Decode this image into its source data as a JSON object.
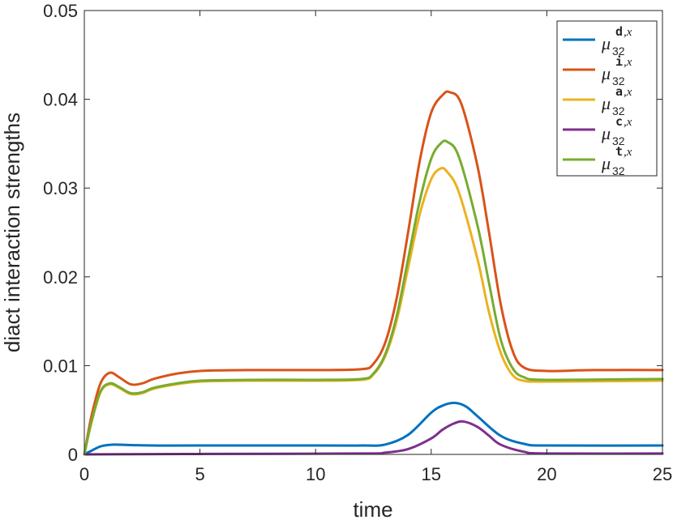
{
  "chart_data": {
    "type": "line",
    "xlabel": "time",
    "ylabel": "diact  interaction  strengths",
    "xlim": [
      0,
      25
    ],
    "ylim": [
      0,
      0.05
    ],
    "xticks": [
      "0",
      "5",
      "10",
      "15",
      "20",
      "25"
    ],
    "yticks": [
      "0",
      "0.01",
      "0.02",
      "0.03",
      "0.04",
      "0.05"
    ],
    "grid": false,
    "legend_position": "top-right",
    "series": [
      {
        "name": "μ32 d,x",
        "legend_base": "μ",
        "legend_sub": "32",
        "legend_sup": "d",
        "color": "#0072BD",
        "points": [
          [
            0,
            0
          ],
          [
            0.3,
            0.0004
          ],
          [
            0.7,
            0.0009
          ],
          [
            1.2,
            0.0011
          ],
          [
            2,
            0.00105
          ],
          [
            3,
            0.001
          ],
          [
            5,
            0.001
          ],
          [
            10,
            0.001
          ],
          [
            12,
            0.001
          ],
          [
            13,
            0.0011
          ],
          [
            14,
            0.0022
          ],
          [
            15,
            0.0047
          ],
          [
            15.5,
            0.0055
          ],
          [
            16,
            0.0058
          ],
          [
            16.5,
            0.0054
          ],
          [
            17,
            0.0043
          ],
          [
            18,
            0.0021
          ],
          [
            19,
            0.0012
          ],
          [
            20,
            0.001
          ],
          [
            25,
            0.001
          ]
        ]
      },
      {
        "name": "μ32 i,x",
        "legend_base": "μ",
        "legend_sub": "32",
        "legend_sup": "i",
        "color": "#D95319",
        "points": [
          [
            0,
            0
          ],
          [
            0.3,
            0.0042
          ],
          [
            0.7,
            0.008
          ],
          [
            1.1,
            0.0092
          ],
          [
            1.5,
            0.0087
          ],
          [
            2,
            0.0079
          ],
          [
            2.5,
            0.008
          ],
          [
            3,
            0.0085
          ],
          [
            4,
            0.0091
          ],
          [
            5,
            0.0094
          ],
          [
            7,
            0.0095
          ],
          [
            10,
            0.0095
          ],
          [
            12,
            0.0096
          ],
          [
            12.5,
            0.0102
          ],
          [
            13,
            0.0125
          ],
          [
            13.5,
            0.0175
          ],
          [
            14,
            0.025
          ],
          [
            14.5,
            0.033
          ],
          [
            15,
            0.0385
          ],
          [
            15.5,
            0.0405
          ],
          [
            15.8,
            0.0408
          ],
          [
            16.3,
            0.0395
          ],
          [
            17,
            0.0325
          ],
          [
            17.5,
            0.025
          ],
          [
            18,
            0.017
          ],
          [
            18.5,
            0.0118
          ],
          [
            19,
            0.0098
          ],
          [
            20,
            0.0094
          ],
          [
            22,
            0.0095
          ],
          [
            25,
            0.0095
          ]
        ]
      },
      {
        "name": "μ32 a,x",
        "legend_base": "μ",
        "legend_sub": "32",
        "legend_sup": "a",
        "color": "#EDB120",
        "points": [
          [
            0,
            0
          ],
          [
            0.3,
            0.0035
          ],
          [
            0.7,
            0.007
          ],
          [
            1.1,
            0.0079
          ],
          [
            1.5,
            0.0075
          ],
          [
            2,
            0.0068
          ],
          [
            2.5,
            0.0069
          ],
          [
            3,
            0.0074
          ],
          [
            4,
            0.0079
          ],
          [
            5,
            0.0082
          ],
          [
            7,
            0.0083
          ],
          [
            10,
            0.0083
          ],
          [
            12,
            0.0084
          ],
          [
            12.5,
            0.009
          ],
          [
            13,
            0.011
          ],
          [
            13.5,
            0.015
          ],
          [
            14,
            0.021
          ],
          [
            14.5,
            0.027
          ],
          [
            15,
            0.031
          ],
          [
            15.4,
            0.0322
          ],
          [
            15.7,
            0.0318
          ],
          [
            16.2,
            0.0295
          ],
          [
            17,
            0.022
          ],
          [
            17.5,
            0.016
          ],
          [
            18,
            0.0115
          ],
          [
            18.5,
            0.009
          ],
          [
            19,
            0.0083
          ],
          [
            20,
            0.0082
          ],
          [
            25,
            0.0083
          ]
        ]
      },
      {
        "name": "μ32 c,x",
        "legend_base": "μ",
        "legend_sub": "32",
        "legend_sup": "c",
        "color": "#7E2F8E",
        "points": [
          [
            0,
            0
          ],
          [
            5,
            5e-05
          ],
          [
            12,
            0.0001
          ],
          [
            13,
            0.0002
          ],
          [
            14,
            0.0006
          ],
          [
            15,
            0.0018
          ],
          [
            15.5,
            0.0028
          ],
          [
            16,
            0.0035
          ],
          [
            16.4,
            0.0037
          ],
          [
            17,
            0.0031
          ],
          [
            17.5,
            0.0021
          ],
          [
            18,
            0.0011
          ],
          [
            19,
            0.0003
          ],
          [
            20,
            0.0001
          ],
          [
            25,
            0.0001
          ]
        ]
      },
      {
        "name": "μ32 t,x",
        "legend_base": "μ",
        "legend_sub": "32",
        "legend_sup": "t",
        "color": "#77AC30",
        "points": [
          [
            0,
            0
          ],
          [
            0.3,
            0.0036
          ],
          [
            0.7,
            0.0071
          ],
          [
            1.1,
            0.008
          ],
          [
            1.5,
            0.0076
          ],
          [
            2,
            0.0069
          ],
          [
            2.5,
            0.007
          ],
          [
            3,
            0.0075
          ],
          [
            4,
            0.008
          ],
          [
            5,
            0.0083
          ],
          [
            7,
            0.0084
          ],
          [
            10,
            0.0084
          ],
          [
            12,
            0.0085
          ],
          [
            12.5,
            0.0091
          ],
          [
            13,
            0.0112
          ],
          [
            13.5,
            0.0155
          ],
          [
            14,
            0.022
          ],
          [
            14.5,
            0.0285
          ],
          [
            15,
            0.0333
          ],
          [
            15.4,
            0.035
          ],
          [
            15.7,
            0.0352
          ],
          [
            16.2,
            0.0335
          ],
          [
            17,
            0.0258
          ],
          [
            17.5,
            0.0193
          ],
          [
            18,
            0.013
          ],
          [
            18.5,
            0.0098
          ],
          [
            19,
            0.0087
          ],
          [
            20,
            0.0084
          ],
          [
            25,
            0.0085
          ]
        ]
      }
    ]
  }
}
